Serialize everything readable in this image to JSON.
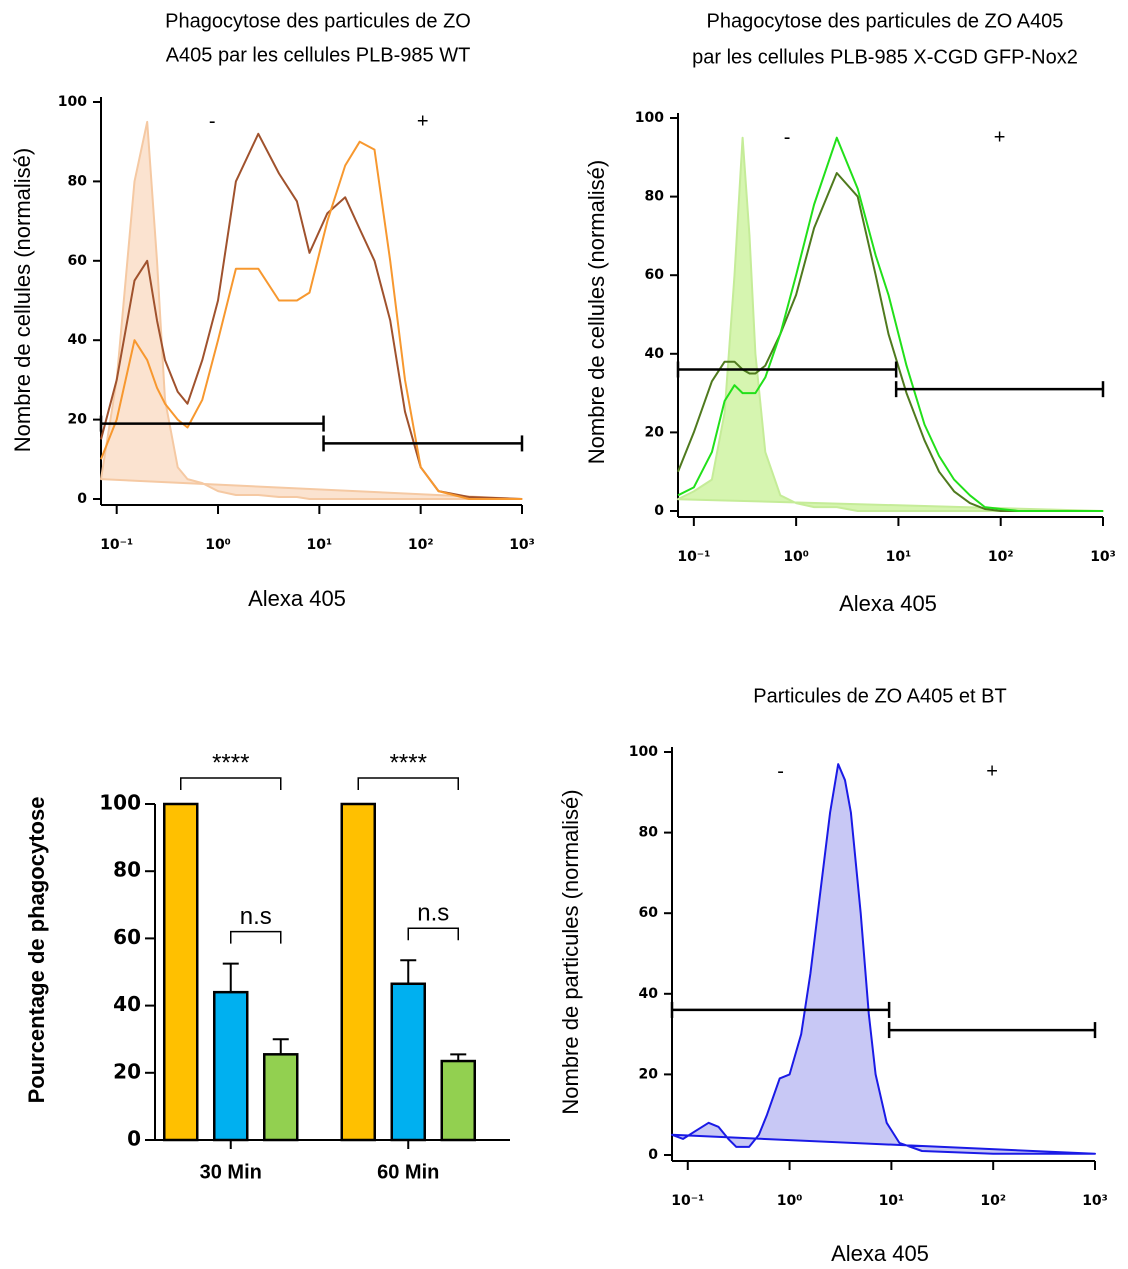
{
  "chart_data": [
    {
      "type": "line",
      "title": [
        "Phagocytose des particules de ZO",
        "A405 par les cellules PLB-985 WT"
      ],
      "xlabel": "Alexa 405",
      "ylabel": "Nombre de cellules (normalisé)",
      "xscale": "log",
      "xlim": [
        0.07,
        1000
      ],
      "ylim": [
        0,
        100
      ],
      "xticks": [
        {
          "value": 0.1,
          "label": "10⁻¹"
        },
        {
          "value": 1,
          "label": "10⁰"
        },
        {
          "value": 10,
          "label": "10¹"
        },
        {
          "value": 100,
          "label": "10²"
        },
        {
          "value": 1000,
          "label": "10³"
        }
      ],
      "yticks": [
        0,
        20,
        40,
        60,
        80,
        100
      ],
      "x": [
        0.07,
        0.1,
        0.15,
        0.2,
        0.25,
        0.3,
        0.4,
        0.5,
        0.7,
        1,
        1.5,
        2.5,
        4,
        6,
        8,
        12,
        18,
        25,
        35,
        50,
        70,
        100,
        150,
        300,
        1000
      ],
      "series": [
        {
          "color": "#f5c9a3",
          "fill": "#fbe3d0",
          "values": [
            5,
            30,
            80,
            95,
            60,
            25,
            8,
            5,
            4,
            2,
            1,
            1,
            0.5,
            0.5,
            0,
            0,
            0,
            0,
            0,
            0,
            0,
            0,
            0,
            0,
            0
          ]
        },
        {
          "color": "#a0522d",
          "values": [
            15,
            30,
            55,
            60,
            45,
            35,
            27,
            24,
            35,
            50,
            80,
            92,
            82,
            75,
            62,
            72,
            76,
            68,
            60,
            45,
            22,
            8,
            2,
            0.5,
            0
          ]
        },
        {
          "color": "#f7982f",
          "values": [
            10,
            20,
            40,
            35,
            28,
            24,
            20,
            18,
            25,
            40,
            58,
            58,
            50,
            50,
            52,
            70,
            84,
            90,
            88,
            60,
            30,
            8,
            2,
            0,
            0
          ]
        }
      ],
      "gates": [
        {
          "label": "-",
          "x": [
            0.07,
            11
          ],
          "y": 19
        },
        {
          "label": "+",
          "x": [
            11,
            1000
          ],
          "y": 14
        }
      ]
    },
    {
      "type": "line",
      "title": [
        "Phagocytose des particules de ZO A405",
        "par les cellules PLB-985 X-CGD GFP-Nox2"
      ],
      "xlabel": "Alexa 405",
      "ylabel": "Nombre de cellules (normalisé)",
      "xscale": "log",
      "xlim": [
        0.07,
        1000
      ],
      "ylim": [
        0,
        100
      ],
      "xticks": [
        {
          "value": 0.1,
          "label": "10⁻¹"
        },
        {
          "value": 1,
          "label": "10⁰"
        },
        {
          "value": 10,
          "label": "10¹"
        },
        {
          "value": 100,
          "label": "10²"
        },
        {
          "value": 1000,
          "label": "10³"
        }
      ],
      "yticks": [
        0,
        20,
        40,
        60,
        80,
        100
      ],
      "x": [
        0.07,
        0.1,
        0.15,
        0.2,
        0.25,
        0.3,
        0.35,
        0.4,
        0.5,
        0.7,
        1,
        1.5,
        2.5,
        4,
        6,
        8,
        12,
        18,
        25,
        35,
        50,
        70,
        100,
        150,
        1000
      ],
      "series": [
        {
          "color": "#c5ec98",
          "fill": "#d6f5b0",
          "values": [
            3,
            5,
            8,
            25,
            60,
            95,
            70,
            40,
            15,
            4,
            2,
            1,
            1,
            0,
            0,
            0,
            0,
            0,
            0,
            0,
            0,
            0,
            0,
            0,
            0
          ]
        },
        {
          "color": "#4f7a1e",
          "values": [
            10,
            20,
            33,
            38,
            38,
            36,
            35,
            35,
            37,
            45,
            55,
            72,
            86,
            80,
            60,
            45,
            30,
            18,
            10,
            5,
            2,
            0.5,
            0,
            0,
            0
          ]
        },
        {
          "color": "#22e01a",
          "values": [
            4,
            6,
            15,
            28,
            32,
            30,
            30,
            30,
            34,
            45,
            60,
            78,
            95,
            82,
            65,
            55,
            37,
            22,
            14,
            8,
            4,
            1,
            0.5,
            0,
            0
          ]
        }
      ],
      "gates": [
        {
          "label": "-",
          "x": [
            0.07,
            9.5
          ],
          "y": 36
        },
        {
          "label": "+",
          "x": [
            9.5,
            1000
          ],
          "y": 31
        }
      ]
    },
    {
      "type": "bar",
      "ylabel": "Pourcentage de phagocytose",
      "categories": [
        "30 Min",
        "60 Min"
      ],
      "ylim": [
        0,
        100
      ],
      "yticks": [
        0,
        20,
        40,
        60,
        80,
        100
      ],
      "series": [
        {
          "color": "#ffc000",
          "values": [
            100,
            100
          ],
          "errors": [
            0,
            0
          ]
        },
        {
          "color": "#00b0f0",
          "values": [
            44,
            46.5
          ],
          "errors": [
            8.5,
            7
          ]
        },
        {
          "color": "#92d050",
          "values": [
            25.5,
            23.5
          ],
          "errors": [
            4.5,
            2
          ]
        }
      ],
      "annotations": [
        "****",
        "n.s"
      ]
    },
    {
      "type": "line",
      "title": [
        "Particules de ZO A405 et BT"
      ],
      "xlabel": "Alexa 405",
      "ylabel": "Nombre de particules (normalisé)",
      "xscale": "log",
      "xlim": [
        0.07,
        1000
      ],
      "ylim": [
        0,
        100
      ],
      "xticks": [
        {
          "value": 0.1,
          "label": "10⁻¹"
        },
        {
          "value": 1,
          "label": "10⁰"
        },
        {
          "value": 10,
          "label": "10¹"
        },
        {
          "value": 100,
          "label": "10²"
        },
        {
          "value": 1000,
          "label": "10³"
        }
      ],
      "yticks": [
        0,
        20,
        40,
        60,
        80,
        100
      ],
      "x": [
        0.07,
        0.09,
        0.12,
        0.16,
        0.2,
        0.25,
        0.3,
        0.4,
        0.5,
        0.6,
        0.8,
        1,
        1.3,
        1.6,
        2,
        2.5,
        3,
        3.5,
        4,
        5,
        6,
        7,
        9,
        12,
        20,
        100,
        1000
      ],
      "series": [
        {
          "color": "#1a1ae6",
          "fill": "#c8c8f5",
          "values": [
            5,
            4,
            6,
            8,
            7,
            4,
            2,
            2,
            5,
            10,
            19,
            20,
            30,
            45,
            65,
            85,
            97,
            93,
            85,
            60,
            35,
            20,
            8,
            3,
            1,
            0.3,
            0.3
          ]
        }
      ],
      "gates": [
        {
          "label": "-",
          "x": [
            0.07,
            9.5
          ],
          "y": 36
        },
        {
          "label": "+",
          "x": [
            9.5,
            1000
          ],
          "y": 31
        }
      ]
    }
  ]
}
